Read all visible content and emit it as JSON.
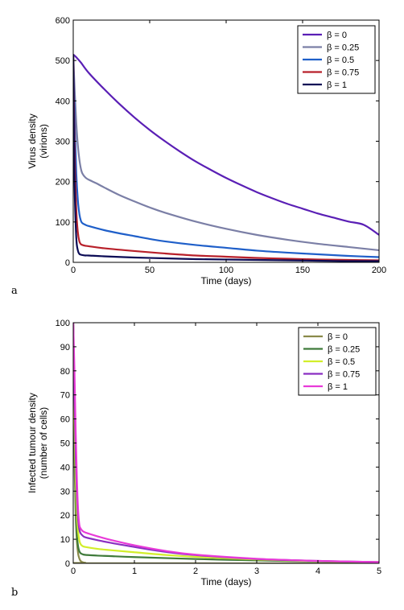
{
  "chart_data": [
    {
      "type": "line",
      "panel_label": "a",
      "title": "",
      "xlabel": "Time (days)",
      "ylabel_lines": [
        "Virus density",
        "(virions)"
      ],
      "xlim": [
        0,
        200
      ],
      "ylim": [
        0,
        600
      ],
      "xticks": [
        0,
        50,
        100,
        150,
        200
      ],
      "yticks": [
        0,
        100,
        200,
        300,
        400,
        500,
        600
      ],
      "grid": false,
      "legend_position": "top-right",
      "series": [
        {
          "name": "β = 0",
          "color": "#5a1fb5",
          "x": [
            0,
            2,
            5,
            10,
            20,
            30,
            40,
            50,
            60,
            70,
            80,
            90,
            100,
            110,
            120,
            130,
            140,
            150,
            160,
            170,
            180,
            190,
            200
          ],
          "y": [
            515,
            508,
            495,
            470,
            430,
            393,
            359,
            328,
            300,
            274,
            250,
            229,
            209,
            191,
            174,
            159,
            145,
            133,
            121,
            111,
            101,
            93,
            68
          ]
        },
        {
          "name": "β = 0.25",
          "color": "#7b7fa6",
          "x": [
            0,
            1,
            2,
            3,
            4,
            5,
            6,
            8,
            10,
            15,
            20,
            30,
            40,
            50,
            60,
            80,
            100,
            120,
            140,
            160,
            180,
            200
          ],
          "y": [
            515,
            420,
            345,
            290,
            255,
            232,
            220,
            210,
            205,
            196,
            186,
            167,
            151,
            136,
            123,
            101,
            83,
            68,
            56,
            46,
            38,
            30
          ]
        },
        {
          "name": "β = 0.5",
          "color": "#1f5fc9",
          "x": [
            0,
            1,
            2,
            3,
            4,
            5,
            6,
            8,
            10,
            20,
            30,
            40,
            50,
            60,
            80,
            100,
            120,
            140,
            160,
            180,
            200
          ],
          "y": [
            515,
            340,
            220,
            155,
            120,
            103,
            97,
            93,
            90,
            80,
            72,
            65,
            58,
            52,
            43,
            36,
            29,
            24,
            20,
            16,
            13
          ]
        },
        {
          "name": "β = 0.75",
          "color": "#b8202a",
          "x": [
            0,
            1,
            2,
            3,
            4,
            5,
            6,
            8,
            10,
            20,
            40,
            60,
            80,
            100,
            120,
            140,
            160,
            180,
            200
          ],
          "y": [
            515,
            260,
            130,
            75,
            52,
            45,
            43,
            41,
            40,
            35,
            28,
            22,
            17,
            14,
            11,
            9,
            7,
            6,
            5
          ]
        },
        {
          "name": "β = 1",
          "color": "#0b0b55",
          "x": [
            0,
            0.5,
            1,
            2,
            3,
            4,
            5,
            6,
            8,
            10,
            20,
            40,
            60,
            80,
            100,
            120,
            140,
            160,
            180,
            200
          ],
          "y": [
            515,
            300,
            170,
            60,
            30,
            21,
            19,
            18,
            17,
            17,
            15,
            12,
            10,
            8,
            7,
            6,
            5,
            4,
            3,
            3
          ]
        }
      ]
    },
    {
      "type": "line",
      "panel_label": "b",
      "title": "",
      "xlabel": "Time (days)",
      "ylabel_lines": [
        "Infected tumour density",
        "(number of cells)"
      ],
      "xlim": [
        0,
        5
      ],
      "ylim": [
        0,
        100
      ],
      "xticks": [
        0,
        1,
        2,
        3,
        4,
        5
      ],
      "yticks": [
        0,
        10,
        20,
        30,
        40,
        50,
        60,
        70,
        80,
        90,
        100
      ],
      "grid": false,
      "legend_position": "top-right",
      "series": [
        {
          "name": "β = 0",
          "color": "#8a8a4a",
          "x": [
            0,
            0.01,
            0.02,
            0.04,
            0.06,
            0.08,
            0.1,
            0.12,
            0.15,
            0.2,
            0.3,
            5
          ],
          "y": [
            100,
            70,
            45,
            20,
            9,
            4,
            2,
            1,
            0.5,
            0.2,
            0,
            0
          ]
        },
        {
          "name": "β = 0.25",
          "color": "#3f7a3a",
          "x": [
            0,
            0.02,
            0.04,
            0.06,
            0.08,
            0.1,
            0.12,
            0.15,
            0.2,
            0.4,
            0.6,
            1,
            2,
            3,
            4,
            5
          ],
          "y": [
            100,
            50,
            25,
            12,
            7,
            5,
            4.2,
            3.8,
            3.5,
            3.2,
            3,
            2.6,
            1.8,
            1.2,
            0.8,
            0.5
          ]
        },
        {
          "name": "β = 0.5",
          "color": "#d2ee2a",
          "x": [
            0,
            0.02,
            0.04,
            0.06,
            0.08,
            0.1,
            0.12,
            0.15,
            0.2,
            0.4,
            0.6,
            1,
            1.5,
            2,
            3,
            4,
            5
          ],
          "y": [
            100,
            60,
            35,
            20,
            13,
            9.5,
            8,
            7.2,
            6.8,
            6,
            5.5,
            4.6,
            3.5,
            2.7,
            1.6,
            0.9,
            0.5
          ]
        },
        {
          "name": "β = 0.75",
          "color": "#8a2fc2",
          "x": [
            0,
            0.02,
            0.04,
            0.06,
            0.08,
            0.1,
            0.12,
            0.15,
            0.2,
            0.4,
            0.6,
            1,
            1.5,
            2,
            3,
            4,
            5
          ],
          "y": [
            100,
            70,
            45,
            28,
            18,
            14,
            12.5,
            11.6,
            10.8,
            9.6,
            8.6,
            6.8,
            4.8,
            3.4,
            1.8,
            1,
            0.5
          ]
        },
        {
          "name": "β = 1",
          "color": "#e83ad8",
          "x": [
            0,
            0.02,
            0.04,
            0.06,
            0.08,
            0.1,
            0.12,
            0.15,
            0.2,
            0.4,
            0.6,
            1,
            1.5,
            2,
            3,
            4,
            5
          ],
          "y": [
            100,
            80,
            55,
            35,
            22,
            16,
            14.5,
            13.5,
            12.8,
            11.2,
            9.8,
            7.5,
            5.2,
            3.6,
            1.9,
            1,
            0.5
          ]
        }
      ]
    }
  ]
}
